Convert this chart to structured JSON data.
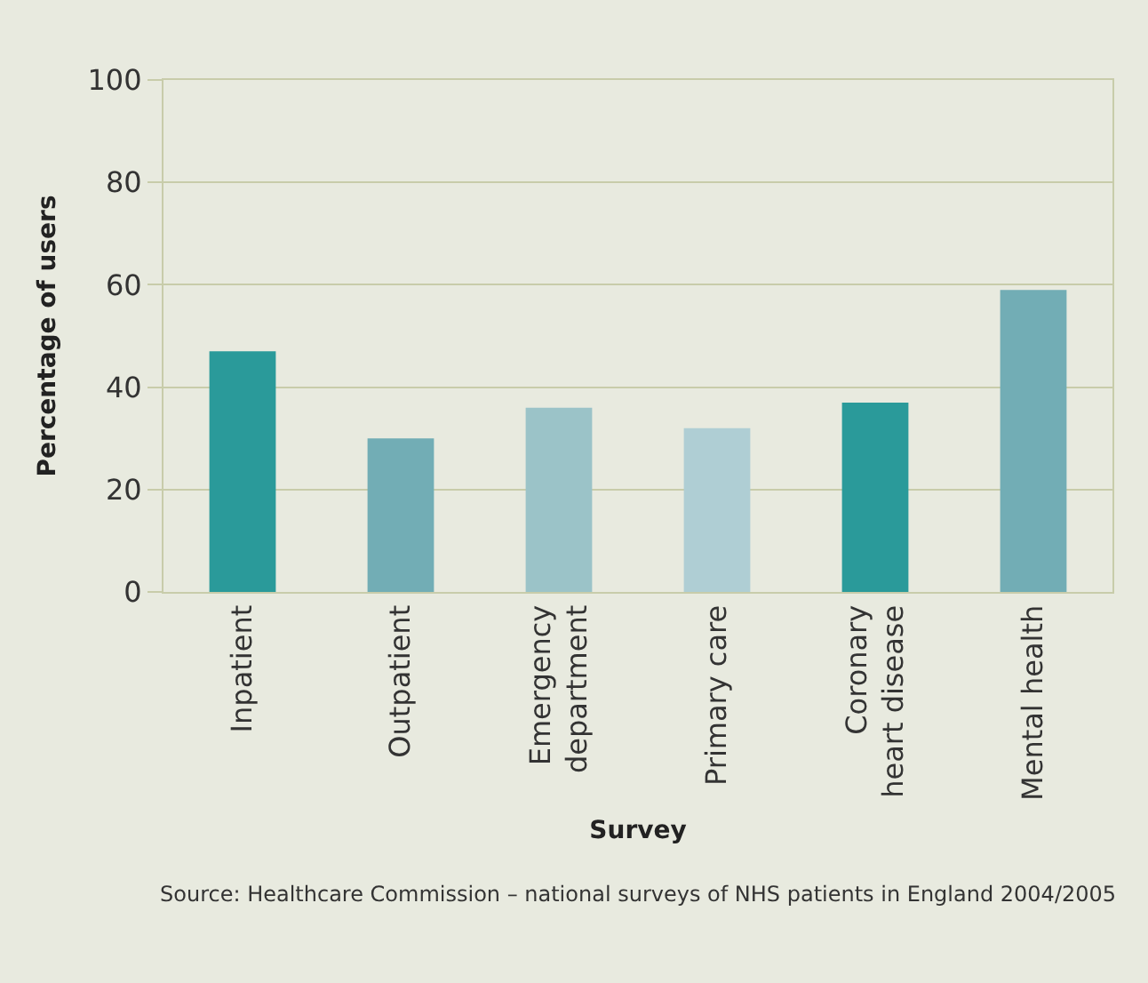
{
  "chart_data": {
    "type": "bar",
    "xlabel": "Survey",
    "ylabel": "Percentage of users",
    "categories": [
      "Inpatient",
      "Outpatient",
      "Emergency\ndepartment",
      "Primary care",
      "Coronary\nheart disease",
      "Mental health"
    ],
    "values": [
      47,
      30,
      36,
      32,
      37,
      59
    ],
    "colors": [
      "#2a9a9a",
      "#72adb5",
      "#9bc3c8",
      "#afced4",
      "#2a9a9a",
      "#72adb5"
    ],
    "ylim": [
      0,
      100
    ],
    "yticks": [
      0,
      20,
      40,
      60,
      80,
      100
    ],
    "grid": "y",
    "annotations": [
      "Source: Healthcare Commission – national surveys of NHS patients in England 2004/2005"
    ]
  }
}
